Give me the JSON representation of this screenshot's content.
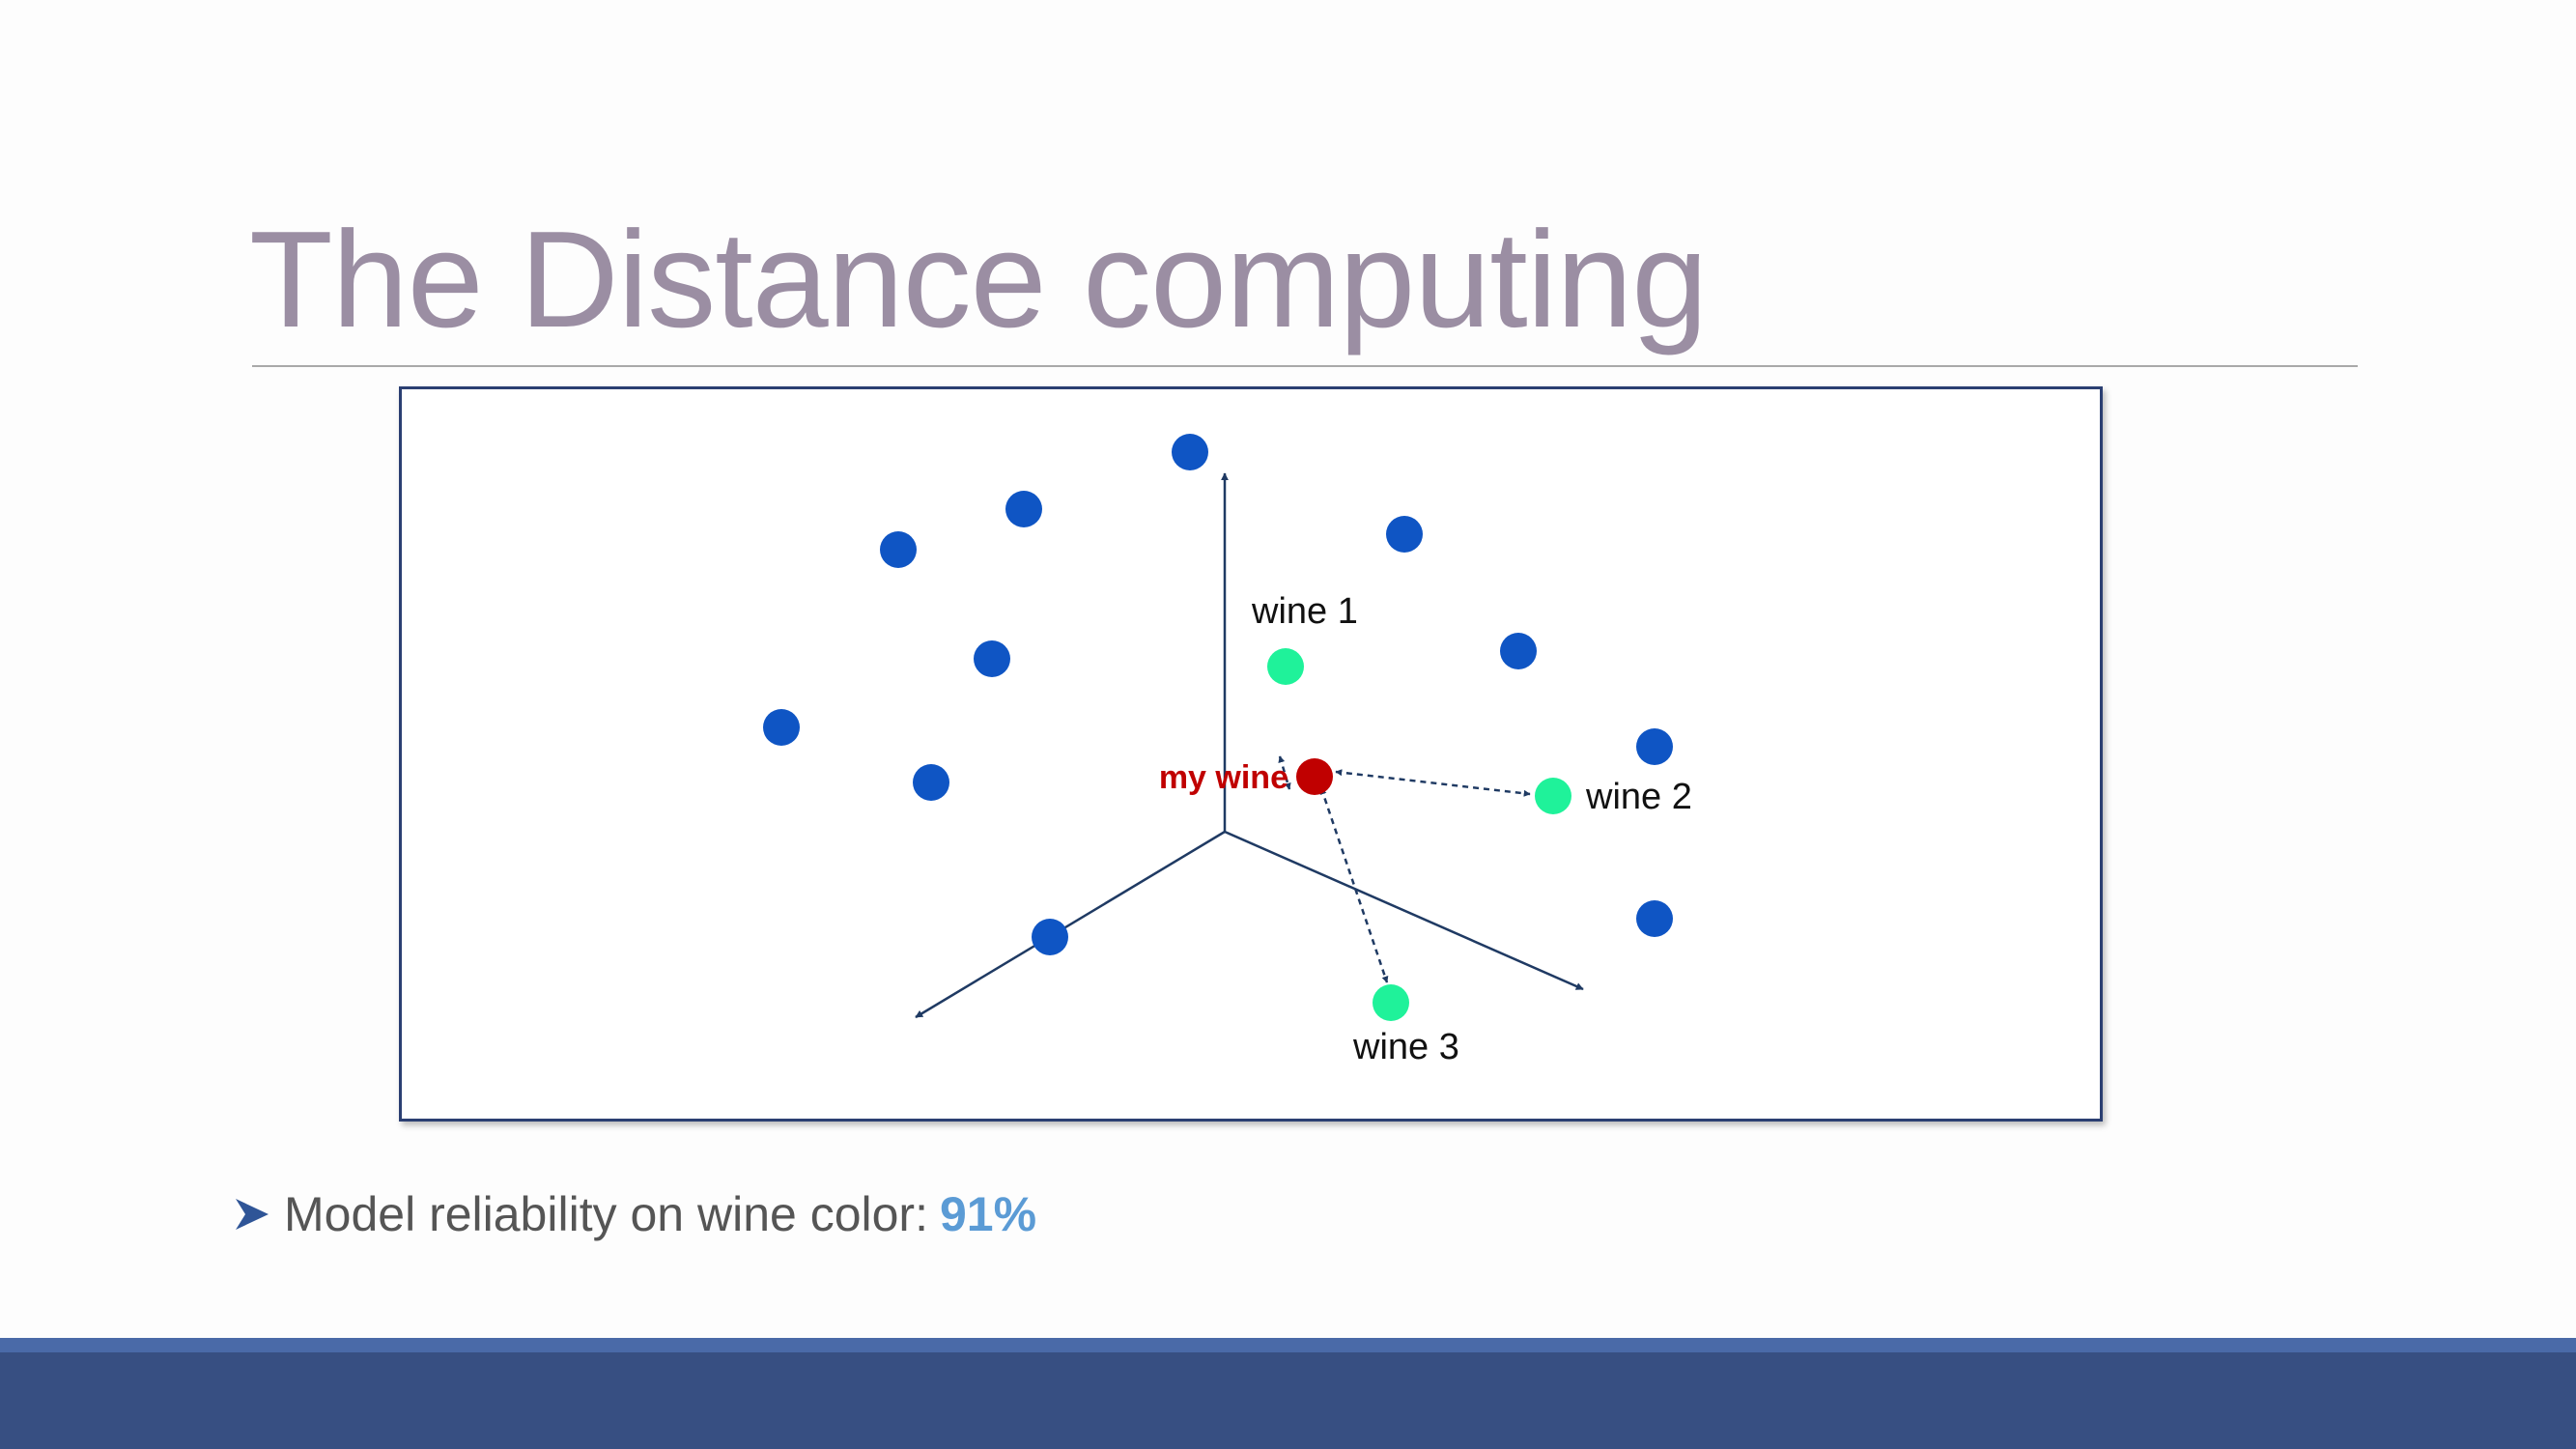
{
  "slide": {
    "title": "The Distance computing",
    "bullet": {
      "text": "Model reliability on wine color:",
      "value": "91%",
      "icon": "arrow-bullet-icon"
    }
  },
  "diagram": {
    "my_wine_label": "my wine",
    "labels": {
      "wine1": "wine 1",
      "wine2": "wine 2",
      "wine3": "wine 3"
    },
    "colors": {
      "other_points": "#0f55c4",
      "neighbors": "#1ff29a",
      "my_wine": "#c00000",
      "axes": "#1f3a63",
      "frame": "#2b3f72",
      "title": "#9b8ea3",
      "accent_value": "#5b9bd5",
      "footer": "#374f82"
    }
  }
}
